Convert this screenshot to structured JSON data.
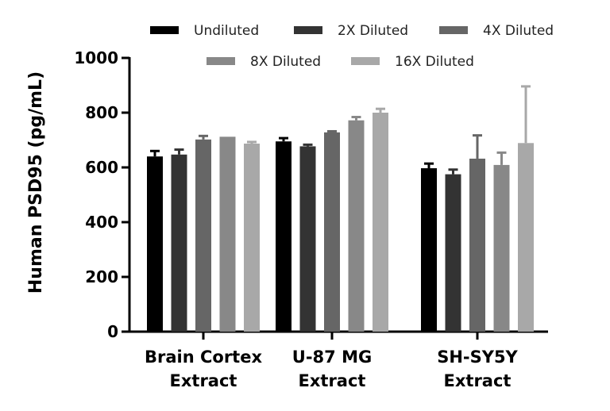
{
  "chart_data": {
    "type": "bar",
    "title": "",
    "xlabel": "",
    "ylabel": "Human PSD95 (pg/mL)",
    "ylim": [
      0,
      1000
    ],
    "yticks": [
      0,
      200,
      400,
      600,
      800,
      1000
    ],
    "grid": false,
    "legend_position": "top",
    "categories": [
      [
        "Brain Cortex",
        "Extract"
      ],
      [
        "U-87 MG",
        "Extract"
      ],
      [
        "SH-SY5Y",
        "Extract"
      ]
    ],
    "series": [
      {
        "name": "Undiluted",
        "color": "#000000",
        "values": [
          640,
          695,
          597
        ],
        "errors": [
          20,
          12,
          17
        ]
      },
      {
        "name": "2X Diluted",
        "color": "#333333",
        "values": [
          647,
          677,
          575
        ],
        "errors": [
          18,
          6,
          17
        ]
      },
      {
        "name": "4X Diluted",
        "color": "#666666",
        "values": [
          702,
          728,
          632
        ],
        "errors": [
          13,
          4,
          85
        ]
      },
      {
        "name": "8X Diluted",
        "color": "#888888",
        "values": [
          712,
          772,
          609
        ],
        "errors": [
          0,
          12,
          45
        ]
      },
      {
        "name": "16X Diluted",
        "color": "#a8a8a8",
        "values": [
          687,
          800,
          689
        ],
        "errors": [
          6,
          14,
          207
        ]
      }
    ]
  }
}
